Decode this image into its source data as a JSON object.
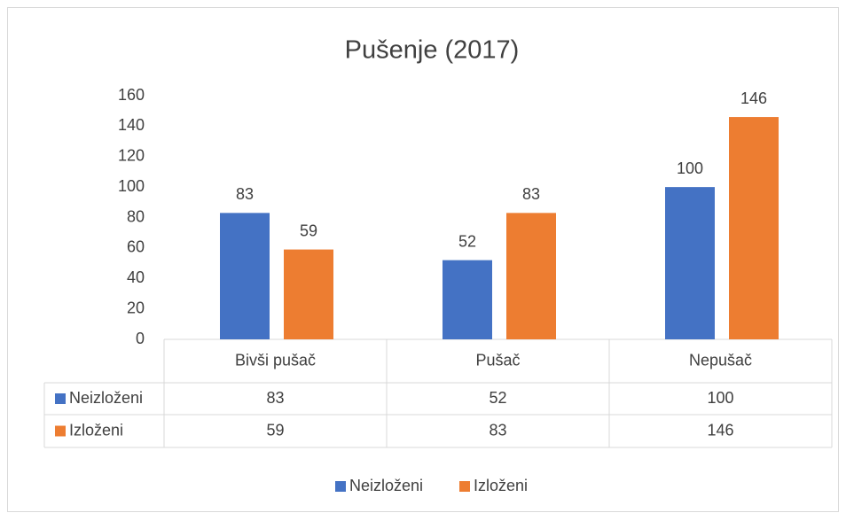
{
  "chart_data": {
    "type": "bar",
    "title": "Pušenje (2017)",
    "categories": [
      "Bivši pušač",
      "Pušač",
      "Nepušač"
    ],
    "series": [
      {
        "name": "Neizloženi",
        "color": "#4472c4",
        "values": [
          83,
          52,
          100
        ]
      },
      {
        "name": "Izloženi",
        "color": "#ed7d31",
        "values": [
          59,
          83,
          146
        ]
      }
    ],
    "ylim": [
      0,
      160
    ],
    "yticks": [
      0,
      20,
      40,
      60,
      80,
      100,
      120,
      140,
      160
    ],
    "grid": false,
    "data_table": true,
    "legend": "bottom"
  }
}
